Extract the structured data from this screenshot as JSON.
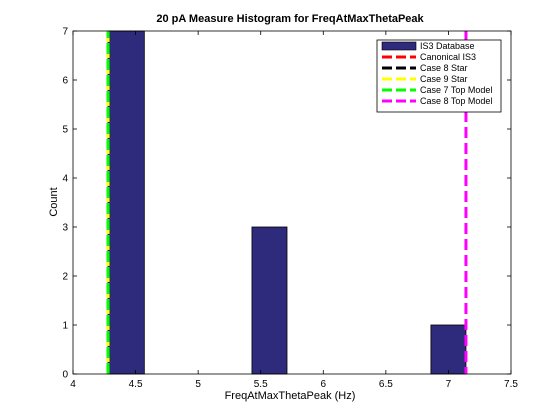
{
  "chart_data": {
    "type": "bar",
    "title": "20 pA Measure Histogram for FreqAtMaxThetaPeak",
    "xlabel": "FreqAtMaxThetaPeak (Hz)",
    "ylabel": "Count",
    "xlim": [
      4,
      7.5
    ],
    "ylim": [
      0,
      7
    ],
    "xticks": [
      "4",
      "4.5",
      "5",
      "5.5",
      "6",
      "6.5",
      "7",
      "7.5"
    ],
    "yticks": [
      "0",
      "1",
      "2",
      "3",
      "4",
      "5",
      "6",
      "7"
    ],
    "grid": false,
    "legend_position": "top-right",
    "histogram": {
      "name": "IS3 Database",
      "color": "#2e2a7c",
      "bin_edges": [
        4.28,
        4.57,
        4.86,
        5.14,
        5.43,
        5.71,
        6.0,
        6.28,
        6.57,
        6.86,
        7.14
      ],
      "counts": [
        7,
        0,
        0,
        0,
        3,
        0,
        0,
        0,
        0,
        1
      ]
    },
    "reference_lines": [
      {
        "name": "Canonical IS3",
        "x": 4.28,
        "color": "#ff0000"
      },
      {
        "name": "Case 8 Star",
        "x": 4.28,
        "color": "#000000"
      },
      {
        "name": "Case 9 Star",
        "x": 4.28,
        "color": "#ffff00"
      },
      {
        "name": "Case 7 Top Model",
        "x": 4.28,
        "color": "#00ff00"
      },
      {
        "name": "Case 8 Top Model",
        "x": 7.14,
        "color": "#ff00ff"
      }
    ]
  }
}
